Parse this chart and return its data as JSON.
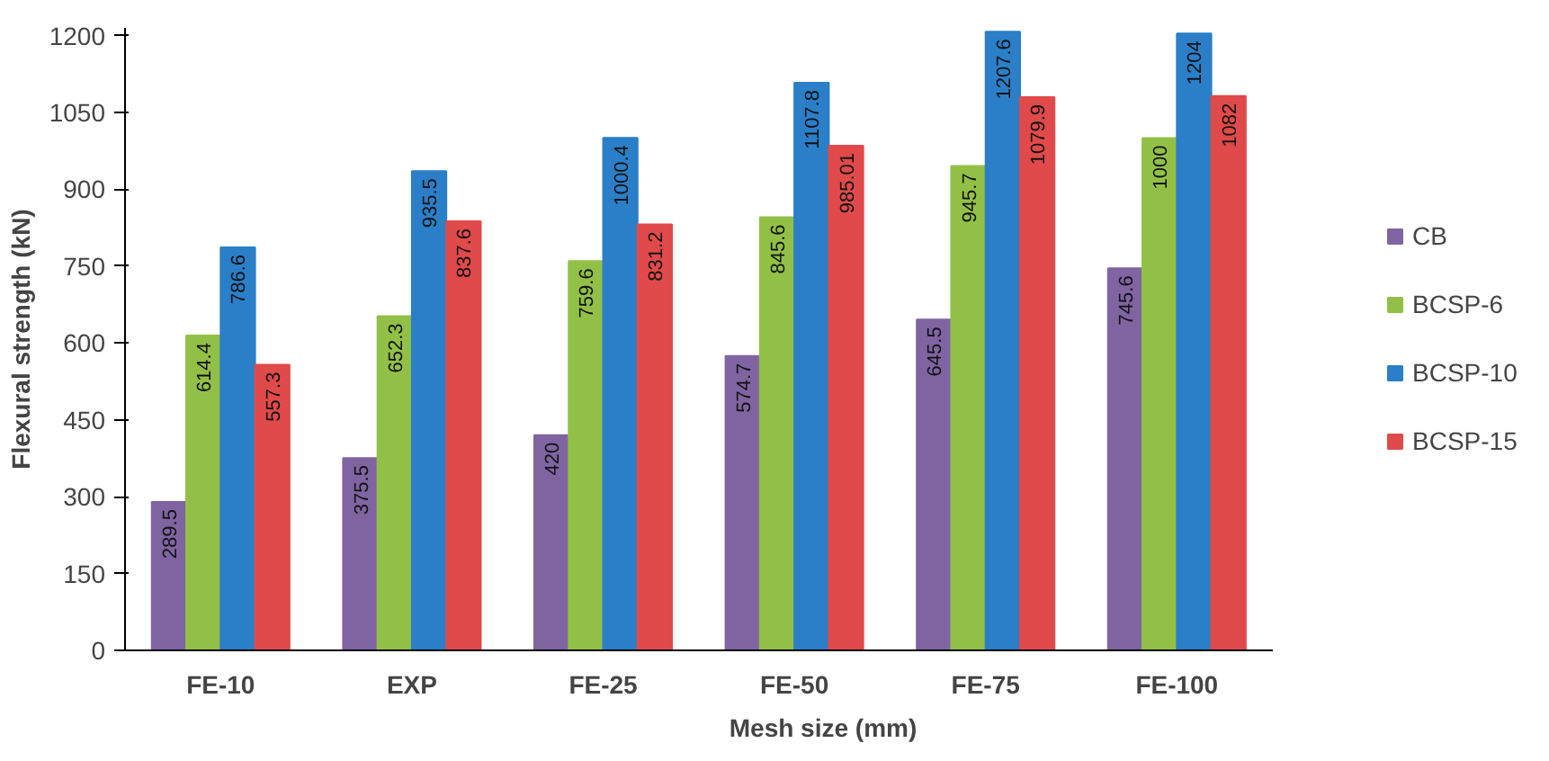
{
  "chart_data": {
    "type": "bar",
    "xlabel": "Mesh size (mm)",
    "ylabel": "Flexural strength (kN)",
    "categories": [
      "FE-10",
      "EXP",
      "FE-25",
      "FE-50",
      "FE-75",
      "FE-100"
    ],
    "series": [
      {
        "name": "CB",
        "color": "#8064a2",
        "values": [
          289.5,
          375.5,
          420,
          574.7,
          645.5,
          745.6
        ]
      },
      {
        "name": "BCSP-6",
        "color": "#92c047",
        "values": [
          614.4,
          652.3,
          759.6,
          845.6,
          945.7,
          1000
        ]
      },
      {
        "name": "BCSP-10",
        "color": "#2a7fc8",
        "values": [
          786.6,
          935.5,
          1000.4,
          1107.8,
          1207.6,
          1204
        ]
      },
      {
        "name": "BCSP-15",
        "color": "#e04a4a",
        "values": [
          557.3,
          837.6,
          831.2,
          985.01,
          1079.9,
          1082
        ]
      }
    ],
    "ylim": [
      0,
      1215
    ],
    "yticks": [
      0,
      150,
      300,
      450,
      600,
      750,
      900,
      1050,
      1200
    ],
    "grid": false,
    "legend": "right",
    "data_labels": true
  }
}
